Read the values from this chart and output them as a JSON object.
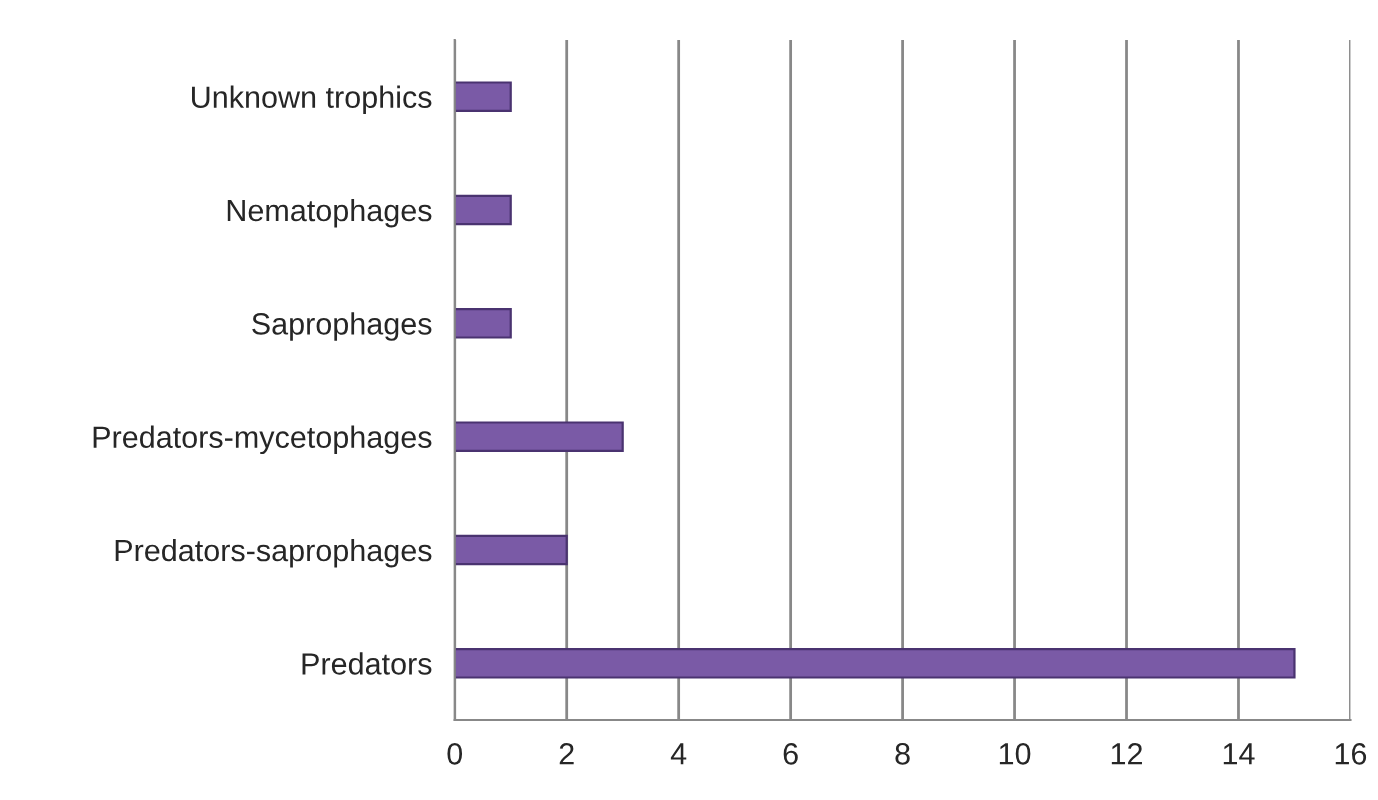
{
  "chart_data": {
    "type": "bar",
    "orientation": "horizontal",
    "categories": [
      "Unknown trophics",
      "Nematophages",
      "Saprophages",
      "Predators-mycetophages",
      "Predators-saprophages",
      "Predators"
    ],
    "values": [
      1,
      1,
      1,
      3,
      2,
      15
    ],
    "color": "#7a5aa6",
    "xlim": [
      0,
      16
    ],
    "xticks": [
      0,
      2,
      4,
      6,
      8,
      10,
      12,
      14,
      16
    ],
    "grid": "x",
    "legend": false
  }
}
